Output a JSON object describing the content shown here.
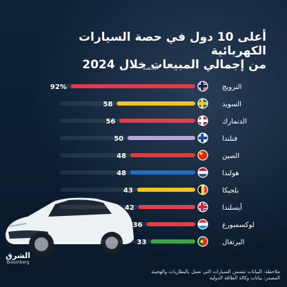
{
  "title_line1": "أعلى 10 دول في حصة السيارات الكهربائية",
  "title_line2": "من إجمالي المبيعات خلال 2024",
  "logo": {
    "ar": "الشرق",
    "en": "Bloomberg"
  },
  "footnote_line1": "ملاحظة: البيانات تتضمن السيارات التي تعمل بالبطاريات والهجينة",
  "footnote_line2": "المصدر: بيانات وكالة الطاقة الدولية",
  "chart_data": {
    "type": "bar",
    "orientation": "horizontal",
    "title": "أعلى 10 دول في حصة السيارات الكهربائية من إجمالي المبيعات خلال 2024",
    "ylabel": "الحصة",
    "xlim": [
      0,
      100
    ],
    "grid": false,
    "categories": [
      "النرويج",
      "السويد",
      "الدنمارك",
      "فنلندا",
      "الصين",
      "هولندا",
      "بلجيكا",
      "أيسلندا",
      "لوكسمبورغ",
      "البرتغال"
    ],
    "values": [
      92,
      58,
      56,
      50,
      48,
      48,
      43,
      42,
      36,
      33
    ],
    "value_labels": [
      "92%",
      "58",
      "56",
      "50",
      "48",
      "48",
      "43",
      "42",
      "36",
      "33"
    ],
    "bar_colors": [
      "#e8374a",
      "#f5c51c",
      "#e0404c",
      "#b7a4dd",
      "#e23a3a",
      "#1f6fc4",
      "#f5c51c",
      "#e0404c",
      "#e0404c",
      "#3aa845"
    ],
    "flags": [
      "norway-flag",
      "sweden-flag",
      "denmark-flag",
      "finland-flag",
      "china-flag",
      "netherlands-flag",
      "belgium-flag",
      "iceland-flag",
      "luxembourg-flag",
      "portugal-flag"
    ]
  }
}
